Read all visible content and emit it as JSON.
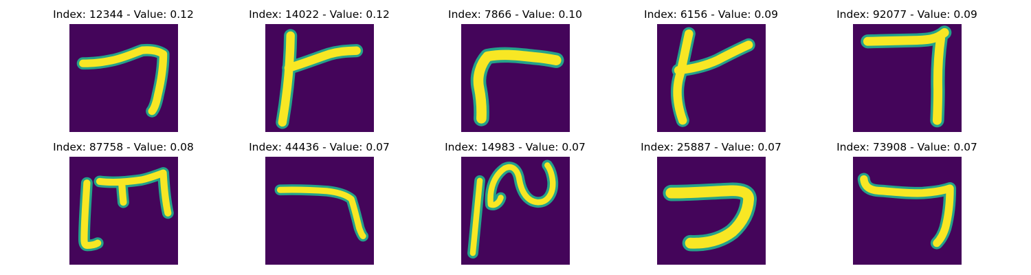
{
  "colors": {
    "background": "#44055a",
    "stroke_mid": "#25a28a",
    "stroke_high": "#f8e724"
  },
  "panels": [
    {
      "title": "Index: 12344 - Value: 0.12",
      "glyph": "hook-right"
    },
    {
      "title": "Index: 14022 - Value: 0.12",
      "glyph": "t-shape"
    },
    {
      "title": "Index: 7866 - Value: 0.10",
      "glyph": "corner-bend"
    },
    {
      "title": "Index: 6156 - Value: 0.09",
      "glyph": "slanted-t"
    },
    {
      "title": "Index: 92077 - Value: 0.09",
      "glyph": "inverted-l"
    },
    {
      "title": "Index: 87758 - Value: 0.08",
      "glyph": "bracket-m"
    },
    {
      "title": "Index: 44436 - Value: 0.07",
      "glyph": "hook-down"
    },
    {
      "title": "Index: 14983 - Value: 0.07",
      "glyph": "wave"
    },
    {
      "title": "Index: 25887 - Value: 0.07",
      "glyph": "curve-hook"
    },
    {
      "title": "Index: 73908 - Value: 0.07",
      "glyph": "small-hook"
    }
  ]
}
